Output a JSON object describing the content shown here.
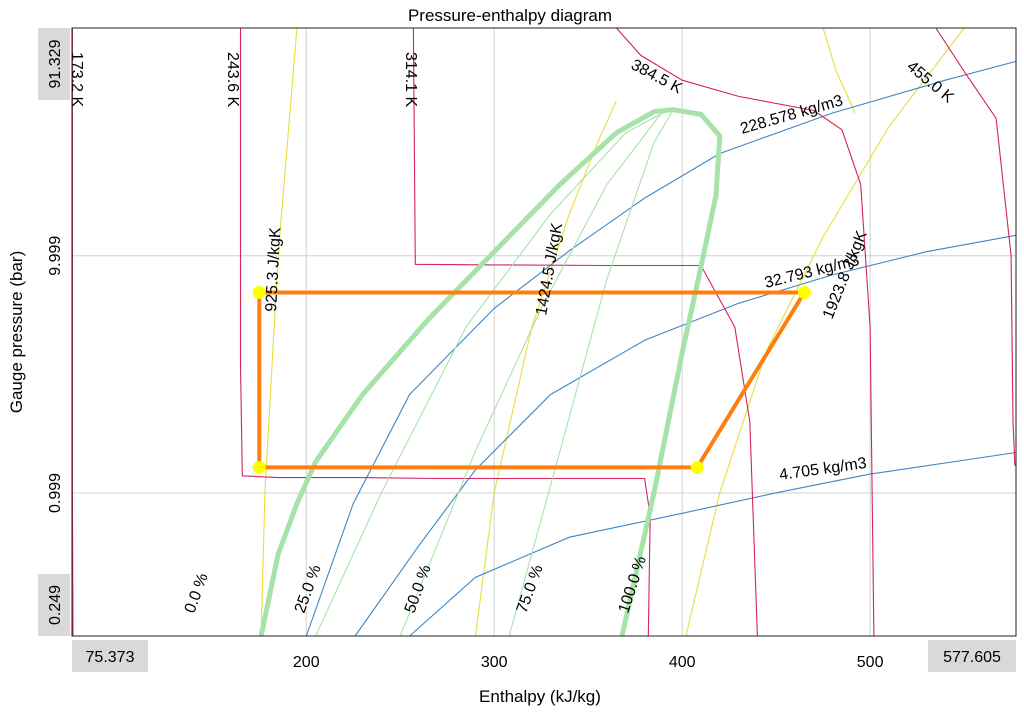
{
  "chart_data": {
    "type": "line",
    "title": "Pressure-enthalpy diagram",
    "xlabel": "Enthalpy (kJ/kg)",
    "ylabel": "Gauge pressure (bar)",
    "xlim": [
      75.373,
      577.605
    ],
    "ylim": [
      0.249,
      91.329
    ],
    "y_scale": "log",
    "grid": true,
    "x_ticks": [
      "200",
      "300",
      "400",
      "500"
    ],
    "x_range_labels": [
      "75.373",
      "577.605"
    ],
    "y_ticks": [
      "9.999",
      "0.999"
    ],
    "y_range_labels": [
      "91.329",
      "0.249"
    ],
    "colors": {
      "saturation": "#a6e3a8",
      "quality": "#a6e3a8",
      "isotherm": "#d4245c",
      "isentrope": "#e8de3c",
      "isochore": "#3f86c4",
      "cycle": "#ff7f0e",
      "cycle_point": "#ffff00"
    },
    "series": [
      {
        "kind": "cycle",
        "points": [
          [
            175,
            7.0
          ],
          [
            465,
            7.0
          ],
          [
            408,
            1.28
          ],
          [
            175,
            1.28
          ],
          [
            175,
            7.0
          ]
        ]
      },
      {
        "kind": "saturation",
        "points": [
          [
            176,
            0.249
          ],
          [
            185,
            0.55
          ],
          [
            195,
            0.9
          ],
          [
            205,
            1.35
          ],
          [
            230,
            2.6
          ],
          [
            265,
            5.4
          ],
          [
            300,
            10.4
          ],
          [
            335,
            20
          ],
          [
            365,
            33
          ],
          [
            385,
            40.5
          ],
          [
            395,
            41.3
          ],
          [
            410,
            39.5
          ],
          [
            420,
            32
          ],
          [
            418,
            18
          ],
          [
            410,
            9.0
          ],
          [
            400,
            3.9
          ],
          [
            385,
            1.0
          ],
          [
            368,
            0.249
          ]
        ]
      }
    ],
    "isotherm_labels": [
      "173.2 K",
      "243.6 K",
      "314.1 K",
      "384.5 K",
      "455.0 K"
    ],
    "isochore_labels": [
      "228.578 kg/m3",
      "32.793 kg/m3",
      "4.705 kg/m3"
    ],
    "isentrope_labels": [
      "925.3 J/kgK",
      "1424.5 J/kgK",
      "1923.8 J/kgK"
    ],
    "quality_labels": [
      "0.0 %",
      "25.0 %",
      "50.0 %",
      "75.0 %",
      "100.0 %"
    ]
  }
}
